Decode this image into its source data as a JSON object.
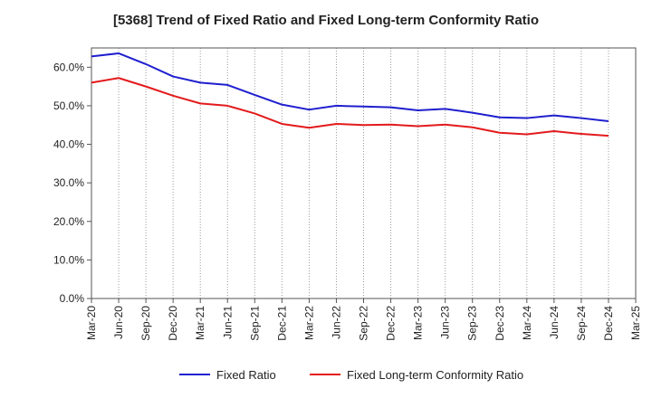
{
  "chart_data": {
    "type": "line",
    "title": "[5368]  Trend of Fixed Ratio and Fixed Long-term Conformity Ratio",
    "xlabel": "",
    "ylabel": "",
    "x_ticks": [
      "Mar-20",
      "Jun-20",
      "Sep-20",
      "Dec-20",
      "Mar-21",
      "Jun-21",
      "Sep-21",
      "Dec-21",
      "Mar-22",
      "Jun-22",
      "Sep-22",
      "Dec-22",
      "Mar-23",
      "Jun-23",
      "Sep-23",
      "Dec-23",
      "Mar-24",
      "Jun-24",
      "Sep-24",
      "Dec-24",
      "Mar-25"
    ],
    "y_ticks": [
      "0.0%",
      "10.0%",
      "20.0%",
      "30.0%",
      "40.0%",
      "50.0%",
      "60.0%"
    ],
    "ylim": [
      0,
      65
    ],
    "grid": "vertical dotted",
    "legend_position": "bottom",
    "x": [
      "Mar-20",
      "Jun-20",
      "Sep-20",
      "Dec-20",
      "Mar-21",
      "Jun-21",
      "Sep-21",
      "Dec-21",
      "Mar-22",
      "Jun-22",
      "Sep-22",
      "Dec-22",
      "Mar-23",
      "Jun-23",
      "Sep-23",
      "Dec-23",
      "Mar-24",
      "Jun-24",
      "Sep-24",
      "Dec-24"
    ],
    "series": [
      {
        "name": "Fixed Ratio",
        "color": "#1f1fcf",
        "values": [
          62.8,
          63.6,
          60.8,
          57.6,
          56.0,
          55.4,
          52.8,
          50.3,
          49.0,
          50.0,
          49.8,
          49.6,
          48.8,
          49.2,
          48.2,
          47.0,
          46.8,
          47.5,
          46.8,
          46.0
        ]
      },
      {
        "name": "Fixed Long-term Conformity Ratio",
        "color": "#e31a1c",
        "values": [
          56.0,
          57.2,
          55.0,
          52.6,
          50.6,
          50.0,
          48.0,
          45.3,
          44.3,
          45.3,
          45.0,
          45.1,
          44.7,
          45.1,
          44.4,
          43.0,
          42.6,
          43.4,
          42.7,
          42.2
        ]
      }
    ]
  }
}
